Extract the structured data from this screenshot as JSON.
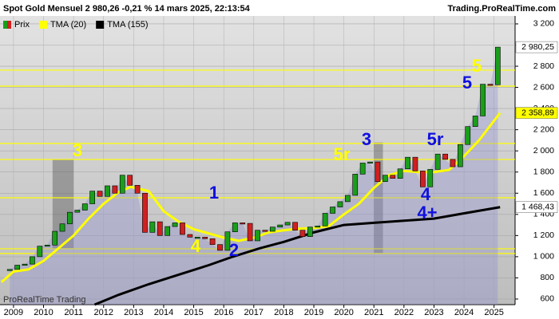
{
  "header": {
    "title": "Spot  Gold Mensuel 2 980,26 -0,21 % 14 mars 2025, 22:13:54",
    "source": "Trading.ProRealTime.com",
    "watermark": "ProRealTime Trading"
  },
  "chart_data": {
    "type": "candlestick",
    "x": [
      2008.875,
      2009.125,
      2009.375,
      2009.625,
      2009.875,
      2010.125,
      2010.375,
      2010.625,
      2010.875,
      2011.125,
      2011.375,
      2011.625,
      2011.875,
      2012.125,
      2012.375,
      2012.625,
      2012.875,
      2013.125,
      2013.375,
      2013.625,
      2013.875,
      2014.125,
      2014.375,
      2014.625,
      2014.875,
      2015.125,
      2015.375,
      2015.625,
      2015.875,
      2016.125,
      2016.375,
      2016.625,
      2016.875,
      2017.125,
      2017.375,
      2017.625,
      2017.875,
      2018.125,
      2018.375,
      2018.625,
      2018.875,
      2019.125,
      2019.375,
      2019.625,
      2019.875,
      2020.125,
      2020.375,
      2020.625,
      2020.875,
      2021.125,
      2021.375,
      2021.625,
      2021.875,
      2022.125,
      2022.375,
      2022.625,
      2022.875,
      2023.125,
      2023.375,
      2023.625,
      2023.875,
      2024.125,
      2024.375,
      2024.625,
      2024.875,
      2025.125
    ],
    "series": [
      {
        "name": "Prix",
        "up_color": "#1a9e1a",
        "down_color": "#d02020",
        "last_value_label": "2 980,25",
        "values": [
          880,
          920,
          930,
          1000,
          1100,
          1110,
          1240,
          1310,
          1420,
          1440,
          1500,
          1620,
          1570,
          1670,
          1600,
          1770,
          1675,
          1600,
          1230,
          1330,
          1200,
          1285,
          1320,
          1210,
          1185,
          1185,
          1170,
          1115,
          1060,
          1235,
          1320,
          1315,
          1150,
          1250,
          1240,
          1280,
          1300,
          1325,
          1250,
          1190,
          1280,
          1290,
          1410,
          1470,
          1520,
          1580,
          1780,
          1885,
          1895,
          1710,
          1770,
          1740,
          1830,
          1940,
          1810,
          1660,
          1825,
          1970,
          1920,
          1850,
          2060,
          2230,
          2330,
          2630,
          2625,
          2980.25
        ]
      },
      {
        "name": "TMA (20)",
        "color": "#ffff00",
        "last_value_label": "2 358,89",
        "x": [
          2008.6,
          2009,
          2009.5,
          2010,
          2010.5,
          2011,
          2011.5,
          2012,
          2012.5,
          2012.9,
          2013.5,
          2014,
          2014.5,
          2015,
          2015.5,
          2016,
          2016.5,
          2017,
          2017.5,
          2018,
          2018.5,
          2019,
          2019.5,
          2020,
          2020.5,
          2021,
          2021.5,
          2022,
          2022.5,
          2023,
          2023.5,
          2024,
          2024.5,
          2025.2
        ],
        "values": [
          760,
          860,
          880,
          960,
          1080,
          1200,
          1360,
          1500,
          1610,
          1660,
          1620,
          1430,
          1330,
          1260,
          1220,
          1180,
          1150,
          1180,
          1230,
          1250,
          1265,
          1270,
          1290,
          1400,
          1500,
          1650,
          1770,
          1810,
          1800,
          1800,
          1820,
          1950,
          2100,
          2358.89
        ]
      },
      {
        "name": "TMA (155)",
        "color": "#000000",
        "last_value_label": "1 468,43",
        "x": [
          2011.7,
          2012.5,
          2013.5,
          2014.5,
          2015.5,
          2016.3,
          2017.2,
          2018,
          2019,
          2020,
          2021,
          2022,
          2023,
          2024,
          2025.2
        ],
        "values": [
          547,
          640,
          740,
          830,
          920,
          1000,
          1080,
          1140,
          1230,
          1300,
          1320,
          1340,
          1360,
          1410,
          1468.43
        ]
      }
    ],
    "levels": {
      "color": "#ffff00",
      "values": [
        2763,
        2612,
        2070,
        1919,
        1557,
        1075,
        1030
      ]
    },
    "boxes": [
      {
        "x": [
          2010.3,
          2011.0
        ],
        "y": [
          1080,
          1920
        ]
      },
      {
        "x": [
          2021.0,
          2021.3
        ],
        "y": [
          1030,
          2080
        ]
      }
    ],
    "annotations": [
      {
        "text": "3",
        "color": "#ffff00"
      },
      {
        "text": "1",
        "color": "#1010e0"
      },
      {
        "text": "4",
        "color": "#ffff00"
      },
      {
        "text": "2",
        "color": "#1010e0"
      },
      {
        "text": "5r",
        "color": "#ffff00"
      },
      {
        "text": "3",
        "color": "#1010e0"
      },
      {
        "text": "5r",
        "color": "#1010e0"
      },
      {
        "text": "4",
        "color": "#1010e0"
      },
      {
        "text": "4+",
        "color": "#1010e0"
      },
      {
        "text": "5",
        "color": "#1010e0"
      },
      {
        "text": "5",
        "color": "#ffff00"
      }
    ],
    "xlim": [
      2008.55,
      2025.7
    ],
    "ylim": [
      547,
      3275
    ],
    "xticks": [
      2009,
      2010,
      2011,
      2012,
      2013,
      2014,
      2015,
      2016,
      2017,
      2018,
      2019,
      2020,
      2021,
      2022,
      2023,
      2024,
      2025
    ],
    "yticks": [
      {
        "value": 3200,
        "label": "3 200"
      },
      {
        "value": 3000,
        "label": "3 000"
      },
      {
        "value": 2800,
        "label": "2 800"
      },
      {
        "value": 2600,
        "label": "2 600"
      },
      {
        "value": 2400,
        "label": "2 400"
      },
      {
        "value": 2200,
        "label": "2 200"
      },
      {
        "value": 2000,
        "label": "2 000"
      },
      {
        "value": 1800,
        "label": "1 800"
      },
      {
        "value": 1600,
        "label": "1 600"
      },
      {
        "value": 1400,
        "label": "1 400"
      },
      {
        "value": 1200,
        "label": "1 200"
      },
      {
        "value": 1000,
        "label": "1 000"
      },
      800,
      600
    ],
    "grid": true
  }
}
